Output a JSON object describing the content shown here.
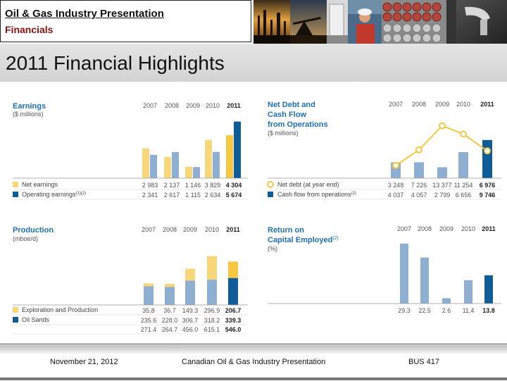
{
  "header": {
    "title": "Oil & Gas Industry Presentation",
    "subtitle": "Financials"
  },
  "slide": {
    "title": "2011 Financial Highlights"
  },
  "colors": {
    "series_light": "#f8d67a",
    "series_dark": "#0f5c97",
    "bar_blue": "#8eaed2",
    "line_yellow": "#f6c842",
    "accent_title": "#1f6fb2",
    "subtitle_red": "#8b1010"
  },
  "footer": {
    "date": "November 21, 2012",
    "center": "Canadian Oil & Gas Industry Presentation",
    "course": "BUS 417"
  },
  "chart_data": [
    {
      "id": "earnings",
      "type": "bar",
      "title": "Earnings",
      "units": "($ millions)",
      "categories": [
        "2007",
        "2008",
        "2009",
        "2010",
        "2011"
      ],
      "series": [
        {
          "name": "Net earnings",
          "values": [
            2983,
            2137,
            1146,
            3829,
            4304
          ],
          "labels": [
            "2 983",
            "2 137",
            "1 146",
            "3 829",
            "4 304"
          ]
        },
        {
          "name": "Operating earnings",
          "superscript": "(1)(2)",
          "values": [
            2341,
            2617,
            1115,
            2634,
            5674
          ],
          "labels": [
            "2 341",
            "2 617",
            "1 115",
            "2 634",
            "5 674"
          ]
        }
      ],
      "ylim": [
        0,
        6000
      ]
    },
    {
      "id": "net-debt-cash-flow",
      "type": "bar+line",
      "title": "Net Debt and Cash Flow from Operations",
      "title_lines": [
        "Net Debt and",
        "Cash Flow",
        "from Operations"
      ],
      "units": "($ millions)",
      "categories": [
        "2007",
        "2008",
        "2009",
        "2010",
        "2011"
      ],
      "series": [
        {
          "name": "Net debt (at year end)",
          "kind": "line",
          "values": [
            3248,
            7226,
            13377,
            11254,
            6976
          ],
          "labels": [
            "3 248",
            "7 226",
            "13 377",
            "11 254",
            "6 976"
          ]
        },
        {
          "name": "Cash flow from operations",
          "superscript": "(2)",
          "kind": "bar",
          "values": [
            4037,
            4057,
            2799,
            6656,
            9746
          ],
          "labels": [
            "4 037",
            "4 057",
            "2 799",
            "6 656",
            "9 746"
          ]
        }
      ],
      "ylim": [
        0,
        16000
      ]
    },
    {
      "id": "production",
      "type": "stacked-bar",
      "title": "Production",
      "units": "(mboe/d)",
      "categories": [
        "2007",
        "2008",
        "2009",
        "2010",
        "2011"
      ],
      "series": [
        {
          "name": "Exploration and Production",
          "values": [
            35.8,
            36.7,
            149.3,
            296.9,
            206.7
          ],
          "labels": [
            "35.8",
            "36.7",
            "149.3",
            "296.9",
            "206.7"
          ]
        },
        {
          "name": "Oil Sands",
          "values": [
            235.6,
            228.0,
            306.7,
            318.2,
            339.3
          ],
          "labels": [
            "235.6",
            "228.0",
            "306.7",
            "318.2",
            "339.3"
          ]
        }
      ],
      "totals": {
        "values": [
          271.4,
          264.7,
          456.0,
          615.1,
          546.0
        ],
        "labels": [
          "271.4",
          "264.7",
          "456.0",
          "615.1",
          "546.0"
        ]
      },
      "ylim": [
        0,
        700
      ]
    },
    {
      "id": "roce",
      "type": "bar",
      "title": "Return on Capital Employed",
      "title_lines": [
        "Return on",
        "Capital Employed"
      ],
      "superscript": "(2)",
      "units": "(%)",
      "categories": [
        "2007",
        "2008",
        "2009",
        "2010",
        "2011"
      ],
      "values": [
        29.3,
        22.5,
        2.6,
        11.4,
        13.8
      ],
      "labels": [
        "29.3",
        "22.5",
        "2.6",
        "11.4",
        "13.8"
      ],
      "ylim": [
        0,
        32
      ]
    }
  ]
}
